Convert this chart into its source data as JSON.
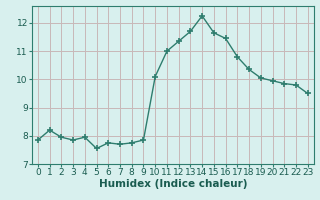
{
  "x": [
    0,
    1,
    2,
    3,
    4,
    5,
    6,
    7,
    8,
    9,
    10,
    11,
    12,
    13,
    14,
    15,
    16,
    17,
    18,
    19,
    20,
    21,
    22,
    23
  ],
  "y": [
    7.85,
    8.2,
    7.95,
    7.85,
    7.95,
    7.55,
    7.75,
    7.7,
    7.75,
    7.85,
    10.1,
    11.0,
    11.35,
    11.7,
    12.25,
    11.65,
    11.45,
    10.8,
    10.35,
    10.05,
    9.95,
    9.85,
    9.8,
    9.5
  ],
  "line_color": "#2e7d6e",
  "marker": "+",
  "marker_size": 5,
  "bg_color": "#d8f0ee",
  "grid_color": "#c8b8b8",
  "xlabel": "Humidex (Indice chaleur)",
  "xlim": [
    -0.5,
    23.5
  ],
  "ylim": [
    7.0,
    12.6
  ],
  "yticks": [
    7,
    8,
    9,
    10,
    11,
    12
  ],
  "xticks": [
    0,
    1,
    2,
    3,
    4,
    5,
    6,
    7,
    8,
    9,
    10,
    11,
    12,
    13,
    14,
    15,
    16,
    17,
    18,
    19,
    20,
    21,
    22,
    23
  ],
  "tick_fontsize": 6.5,
  "xlabel_fontsize": 7.5,
  "linewidth": 1.0
}
